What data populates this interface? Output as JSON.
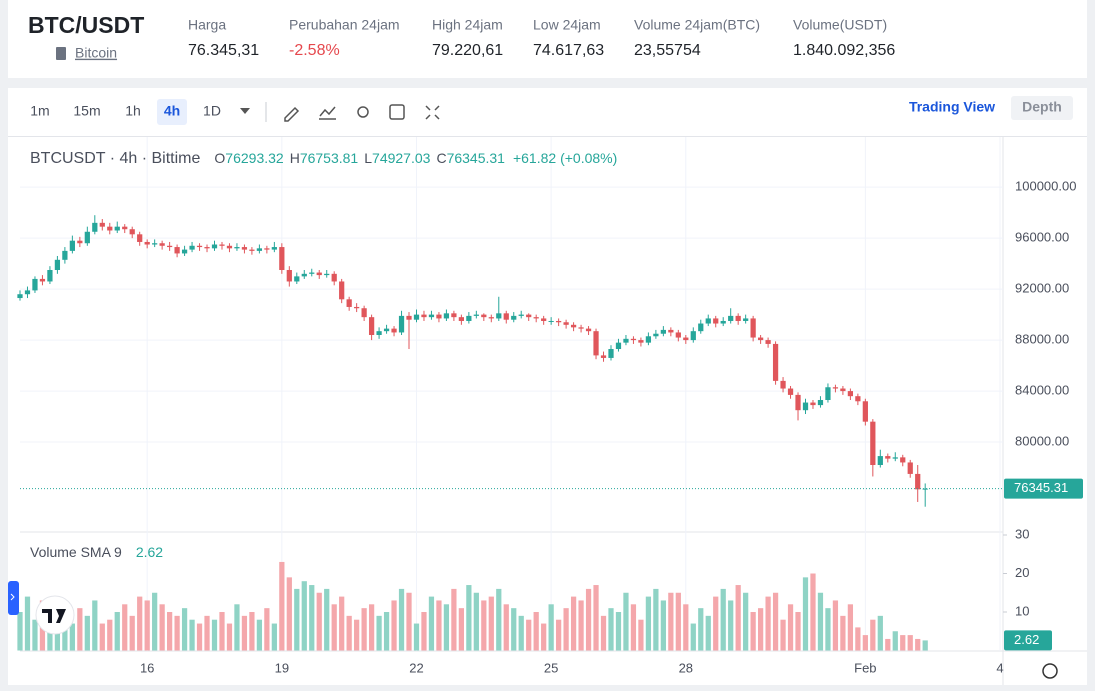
{
  "header": {
    "symbol": "BTC/USDT",
    "asset": "Bitcoin",
    "stats": [
      {
        "label": "Harga",
        "value": "76.345,31"
      },
      {
        "label": "Perubahan 24jam",
        "value": "-2.58%",
        "color": "#e5484d"
      },
      {
        "label": "High 24jam",
        "value": "79.220,61"
      },
      {
        "label": "Low 24jam",
        "value": "74.617,63"
      },
      {
        "label": "Volume 24jam(BTC)",
        "value": "23,55754"
      },
      {
        "label": "Volume(USDT)",
        "value": "1.840.092,356"
      }
    ]
  },
  "toolbar": {
    "intervals": [
      {
        "label": "1m"
      },
      {
        "label": "15m"
      },
      {
        "label": "1h"
      },
      {
        "label": "4h",
        "selected": true
      },
      {
        "label": "1D"
      }
    ],
    "views": [
      {
        "label": "Trading View",
        "selected": true
      },
      {
        "label": "Depth"
      }
    ]
  },
  "chart_data": {
    "type": "candlestick",
    "title": "BTCUSDT · 4h · Bittime",
    "legend": [
      {
        "label": "O",
        "value": 76293.32
      },
      {
        "label": "H",
        "value": 76753.81
      },
      {
        "label": "L",
        "value": 74927.03
      },
      {
        "label": "C",
        "value": 76345.31
      }
    ],
    "change": "+61.82 (+0.08%)",
    "up_color": "#26a69a",
    "down_color": "#e0565b",
    "grid": true,
    "xlim": [
      0,
      131.4
    ],
    "xticks": [
      {
        "value": 17,
        "label": "16"
      },
      {
        "value": 35,
        "label": "19"
      },
      {
        "value": 53,
        "label": "22"
      },
      {
        "value": 71,
        "label": "25"
      },
      {
        "value": 89,
        "label": "28"
      },
      {
        "value": 113,
        "label": "Feb"
      },
      {
        "value": 131,
        "label": "4"
      }
    ],
    "ylim": [
      73100,
      103700
    ],
    "yticks": [
      {
        "value": 100000,
        "label": "100000.00"
      },
      {
        "value": 96000,
        "label": "96000.00"
      },
      {
        "value": 92000,
        "label": "92000.00"
      },
      {
        "value": 88000,
        "label": "88000.00"
      },
      {
        "value": 84000,
        "label": "84000.00"
      },
      {
        "value": 80000,
        "label": "80000.00"
      }
    ],
    "candles": [
      [
        91300,
        91900,
        91100,
        91600
      ],
      [
        91600,
        92200,
        91300,
        91900
      ],
      [
        91900,
        93000,
        91700,
        92800
      ],
      [
        92800,
        93100,
        92300,
        92600
      ],
      [
        92600,
        93800,
        92400,
        93500
      ],
      [
        93500,
        94600,
        93200,
        94300
      ],
      [
        94300,
        95300,
        94000,
        95000
      ],
      [
        95000,
        96200,
        94800,
        95800
      ],
      [
        95800,
        96100,
        95300,
        95600
      ],
      [
        95600,
        96900,
        95400,
        96500
      ],
      [
        96500,
        97800,
        96300,
        97200
      ],
      [
        97200,
        97500,
        96600,
        96900
      ],
      [
        96900,
        97200,
        96300,
        96600
      ],
      [
        96600,
        97300,
        96400,
        96900
      ],
      [
        96900,
        97100,
        96400,
        96700
      ],
      [
        96700,
        96900,
        96000,
        96300
      ],
      [
        96300,
        96500,
        95400,
        95700
      ],
      [
        95700,
        95900,
        95200,
        95500
      ],
      [
        95500,
        95900,
        95300,
        95600
      ],
      [
        95600,
        95800,
        95100,
        95400
      ],
      [
        95400,
        95700,
        95000,
        95300
      ],
      [
        95300,
        95500,
        94500,
        94800
      ],
      [
        94800,
        95400,
        94600,
        95100
      ],
      [
        95100,
        95700,
        94900,
        95400
      ],
      [
        95400,
        95600,
        95000,
        95300
      ],
      [
        95300,
        95500,
        94900,
        95200
      ],
      [
        95200,
        95800,
        95000,
        95500
      ],
      [
        95500,
        95700,
        95100,
        95400
      ],
      [
        95400,
        95600,
        94900,
        95200
      ],
      [
        95200,
        95600,
        95000,
        95300
      ],
      [
        95300,
        95500,
        94800,
        95100
      ],
      [
        95100,
        95300,
        94700,
        95000
      ],
      [
        95000,
        95500,
        94800,
        95200
      ],
      [
        95200,
        95400,
        94800,
        95100
      ],
      [
        95100,
        95700,
        94900,
        95300
      ],
      [
        95300,
        95600,
        93200,
        93500
      ],
      [
        93500,
        93800,
        92200,
        92600
      ],
      [
        92600,
        93300,
        92400,
        93000
      ],
      [
        93000,
        93500,
        92800,
        93200
      ],
      [
        93200,
        93600,
        93000,
        93300
      ],
      [
        93300,
        93500,
        92800,
        93100
      ],
      [
        93100,
        93500,
        92900,
        93200
      ],
      [
        93200,
        93400,
        92300,
        92600
      ],
      [
        92600,
        92800,
        90900,
        91200
      ],
      [
        91200,
        91400,
        90300,
        90600
      ],
      [
        90600,
        90900,
        90200,
        90500
      ],
      [
        90500,
        90700,
        89500,
        89800
      ],
      [
        89800,
        90000,
        88000,
        88400
      ],
      [
        88400,
        89000,
        88100,
        88700
      ],
      [
        88700,
        89200,
        88500,
        88900
      ],
      [
        88900,
        89100,
        88300,
        88600
      ],
      [
        88600,
        90300,
        88400,
        89900
      ],
      [
        89900,
        90200,
        87300,
        89600
      ],
      [
        89600,
        90400,
        89400,
        90000
      ],
      [
        90000,
        90300,
        89500,
        89800
      ],
      [
        89800,
        90300,
        89600,
        90000
      ],
      [
        90000,
        90200,
        89400,
        89700
      ],
      [
        89700,
        90400,
        89500,
        90100
      ],
      [
        90100,
        90300,
        89500,
        89800
      ],
      [
        89800,
        90000,
        89200,
        89500
      ],
      [
        89500,
        90200,
        89300,
        89900
      ],
      [
        89900,
        90300,
        89700,
        90000
      ],
      [
        90000,
        90100,
        89500,
        89800
      ],
      [
        89800,
        90000,
        89400,
        89700
      ],
      [
        89700,
        91400,
        89500,
        90100
      ],
      [
        90100,
        90300,
        89300,
        89600
      ],
      [
        89600,
        90200,
        89400,
        89900
      ],
      [
        89900,
        90300,
        89700,
        90000
      ],
      [
        90000,
        90100,
        89500,
        89800
      ],
      [
        89800,
        90000,
        89400,
        89700
      ],
      [
        89700,
        89900,
        89200,
        89500
      ],
      [
        89500,
        89800,
        89200,
        89500
      ],
      [
        89500,
        89700,
        89100,
        89400
      ],
      [
        89400,
        89600,
        88900,
        89200
      ],
      [
        89200,
        89400,
        88700,
        89000
      ],
      [
        89000,
        89200,
        88600,
        88900
      ],
      [
        88900,
        89100,
        88400,
        88700
      ],
      [
        88700,
        88900,
        86500,
        86800
      ],
      [
        86800,
        87100,
        86300,
        86600
      ],
      [
        86600,
        87600,
        86400,
        87300
      ],
      [
        87300,
        88100,
        87100,
        87800
      ],
      [
        87800,
        88400,
        87600,
        88100
      ],
      [
        88100,
        88300,
        87700,
        88000
      ],
      [
        88000,
        88200,
        87500,
        87800
      ],
      [
        87800,
        88600,
        87600,
        88300
      ],
      [
        88300,
        88800,
        88100,
        88500
      ],
      [
        88500,
        89100,
        88300,
        88800
      ],
      [
        88800,
        89000,
        88300,
        88600
      ],
      [
        88600,
        88800,
        87900,
        88200
      ],
      [
        88200,
        88400,
        87700,
        88000
      ],
      [
        88000,
        89000,
        87800,
        88700
      ],
      [
        88700,
        89600,
        88500,
        89300
      ],
      [
        89300,
        90000,
        89100,
        89700
      ],
      [
        89700,
        89900,
        89000,
        89300
      ],
      [
        89300,
        89800,
        89100,
        89500
      ],
      [
        89500,
        90500,
        89300,
        89900
      ],
      [
        89900,
        90100,
        89200,
        89500
      ],
      [
        89500,
        90000,
        89300,
        89700
      ],
      [
        89700,
        89900,
        87900,
        88200
      ],
      [
        88200,
        88400,
        87700,
        88000
      ],
      [
        88000,
        88200,
        87400,
        87700
      ],
      [
        87700,
        87900,
        84500,
        84800
      ],
      [
        84800,
        85100,
        83900,
        84200
      ],
      [
        84200,
        84400,
        83400,
        83700
      ],
      [
        83700,
        83900,
        81700,
        82500
      ],
      [
        82500,
        83400,
        82200,
        83100
      ],
      [
        83100,
        83300,
        82600,
        82900
      ],
      [
        82900,
        83600,
        82700,
        83300
      ],
      [
        83300,
        84600,
        83100,
        84300
      ],
      [
        84300,
        84500,
        83900,
        84200
      ],
      [
        84200,
        84400,
        83700,
        84000
      ],
      [
        84000,
        84200,
        83300,
        83600
      ],
      [
        83600,
        83800,
        82900,
        83200
      ],
      [
        83200,
        83400,
        81300,
        81600
      ],
      [
        81600,
        81800,
        77300,
        78200
      ],
      [
        78200,
        79400,
        78000,
        78900
      ],
      [
        78900,
        79100,
        78400,
        78700
      ],
      [
        78700,
        79200,
        78500,
        78800
      ],
      [
        78800,
        79000,
        78100,
        78400
      ],
      [
        78400,
        78600,
        77200,
        77500
      ],
      [
        77500,
        78200,
        75300,
        76290
      ],
      [
        76293.32,
        76753.81,
        74927.03,
        76345.31
      ]
    ],
    "volume": {
      "title": "Volume SMA 9",
      "sma_value": 2.62,
      "up_color": "#8fd3c5",
      "down_color": "#f4a7ab",
      "ylim": [
        0,
        30
      ],
      "yticks": [
        10,
        20,
        30
      ],
      "values": [
        10,
        14,
        8,
        13,
        6,
        9,
        12,
        7,
        11,
        9,
        13,
        7,
        8,
        10,
        12,
        9,
        14,
        13,
        15,
        12,
        10,
        9,
        11,
        8,
        7,
        9,
        8,
        10,
        7,
        12,
        9,
        10,
        8,
        11,
        7,
        23,
        19,
        16,
        18,
        17,
        15,
        16,
        12,
        14,
        9,
        8,
        11,
        12,
        9,
        10,
        13,
        16,
        15,
        7,
        10,
        14,
        13,
        12,
        16,
        11,
        17,
        15,
        13,
        14,
        16,
        12,
        11,
        9,
        8,
        10,
        7,
        12,
        8,
        11,
        14,
        13,
        16,
        17,
        9,
        11,
        10,
        15,
        12,
        8,
        14,
        16,
        13,
        15,
        15,
        12,
        7,
        11,
        9,
        14,
        16,
        13,
        17,
        15,
        10,
        11,
        14,
        15,
        8,
        12,
        10,
        19,
        20,
        15,
        11,
        13,
        9,
        12,
        6,
        4,
        8,
        9,
        3,
        5,
        4,
        4,
        3,
        2.62
      ]
    }
  }
}
